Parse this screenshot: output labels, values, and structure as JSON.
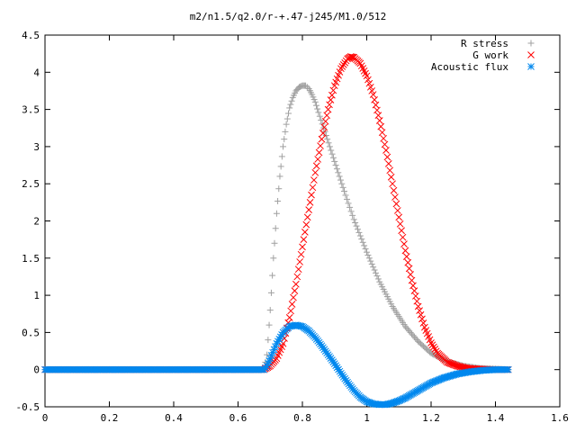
{
  "chart_data": {
    "type": "scatter",
    "title": "m2/n1.5/q2.0/r-+.47-j245/M1.0/512",
    "xlabel": "",
    "ylabel": "",
    "xlim": [
      0,
      1.6
    ],
    "ylim": [
      -0.5,
      4.5
    ],
    "grid": false,
    "legend_position": "top-right",
    "x_ticks": [
      {
        "value": 0,
        "label": "0"
      },
      {
        "value": 0.2,
        "label": "0.2"
      },
      {
        "value": 0.4,
        "label": "0.4"
      },
      {
        "value": 0.6,
        "label": "0.6"
      },
      {
        "value": 0.8,
        "label": "0.8"
      },
      {
        "value": 1.0,
        "label": "1"
      },
      {
        "value": 1.2,
        "label": "1.2"
      },
      {
        "value": 1.4,
        "label": "1.4"
      },
      {
        "value": 1.6,
        "label": "1.6"
      }
    ],
    "y_ticks": [
      {
        "value": -0.5,
        "label": "-0.5"
      },
      {
        "value": 0,
        "label": "0"
      },
      {
        "value": 0.5,
        "label": "0.5"
      },
      {
        "value": 1.0,
        "label": "1"
      },
      {
        "value": 1.5,
        "label": "1.5"
      },
      {
        "value": 2.0,
        "label": "2"
      },
      {
        "value": 2.5,
        "label": "2.5"
      },
      {
        "value": 3.0,
        "label": "3"
      },
      {
        "value": 3.5,
        "label": "3.5"
      },
      {
        "value": 4.0,
        "label": "4"
      },
      {
        "value": 4.5,
        "label": "4.5"
      }
    ],
    "series": [
      {
        "name": "R stress",
        "marker": "plus",
        "color": "#a0a0a0",
        "x": [
          0,
          0.1,
          0.2,
          0.3,
          0.4,
          0.5,
          0.6,
          0.68,
          0.69,
          0.7,
          0.71,
          0.72,
          0.73,
          0.74,
          0.75,
          0.76,
          0.77,
          0.78,
          0.79,
          0.8,
          0.81,
          0.82,
          0.83,
          0.84,
          0.85,
          0.87,
          0.9,
          0.93,
          0.96,
          1.0,
          1.04,
          1.08,
          1.12,
          1.16,
          1.2,
          1.25,
          1.3,
          1.35,
          1.4,
          1.44
        ],
        "y": [
          0,
          0,
          0,
          0,
          0,
          0,
          0,
          0,
          0.2,
          0.8,
          1.5,
          2.1,
          2.6,
          3.0,
          3.3,
          3.52,
          3.66,
          3.75,
          3.8,
          3.82,
          3.82,
          3.78,
          3.7,
          3.6,
          3.46,
          3.2,
          2.8,
          2.4,
          2.02,
          1.58,
          1.18,
          0.85,
          0.58,
          0.38,
          0.22,
          0.11,
          0.05,
          0.02,
          0.01,
          0
        ]
      },
      {
        "name": "G work",
        "marker": "cross",
        "color": "#ff0000",
        "x": [
          0,
          0.1,
          0.2,
          0.3,
          0.4,
          0.5,
          0.6,
          0.68,
          0.7,
          0.72,
          0.74,
          0.76,
          0.78,
          0.8,
          0.82,
          0.84,
          0.86,
          0.88,
          0.9,
          0.92,
          0.94,
          0.95,
          0.96,
          0.98,
          1.0,
          1.02,
          1.04,
          1.06,
          1.08,
          1.1,
          1.12,
          1.14,
          1.16,
          1.18,
          1.2,
          1.22,
          1.25,
          1.28,
          1.31,
          1.34,
          1.38,
          1.42,
          1.44
        ],
        "y": [
          0,
          0,
          0,
          0,
          0,
          0,
          0,
          0,
          0.05,
          0.15,
          0.35,
          0.7,
          1.15,
          1.65,
          2.15,
          2.65,
          3.1,
          3.5,
          3.82,
          4.05,
          4.18,
          4.21,
          4.2,
          4.12,
          3.95,
          3.7,
          3.35,
          2.95,
          2.5,
          2.05,
          1.6,
          1.2,
          0.85,
          0.57,
          0.36,
          0.22,
          0.1,
          0.05,
          0.02,
          0.01,
          0,
          0,
          0
        ]
      },
      {
        "name": "Acoustic flux",
        "marker": "star",
        "color": "#0088ee",
        "x": [
          0,
          0.1,
          0.2,
          0.3,
          0.4,
          0.5,
          0.6,
          0.68,
          0.69,
          0.7,
          0.72,
          0.74,
          0.76,
          0.78,
          0.8,
          0.82,
          0.84,
          0.86,
          0.88,
          0.9,
          0.92,
          0.94,
          0.96,
          0.98,
          1.0,
          1.02,
          1.04,
          1.06,
          1.08,
          1.1,
          1.12,
          1.14,
          1.16,
          1.18,
          1.2,
          1.24,
          1.28,
          1.32,
          1.36,
          1.4,
          1.44
        ],
        "y": [
          0,
          0,
          0,
          0,
          0,
          0,
          0,
          0,
          0.05,
          0.15,
          0.35,
          0.5,
          0.58,
          0.6,
          0.58,
          0.52,
          0.43,
          0.32,
          0.2,
          0.08,
          -0.05,
          -0.17,
          -0.28,
          -0.37,
          -0.43,
          -0.46,
          -0.47,
          -0.47,
          -0.45,
          -0.42,
          -0.38,
          -0.33,
          -0.28,
          -0.23,
          -0.18,
          -0.11,
          -0.06,
          -0.03,
          -0.01,
          0,
          0
        ]
      }
    ]
  }
}
